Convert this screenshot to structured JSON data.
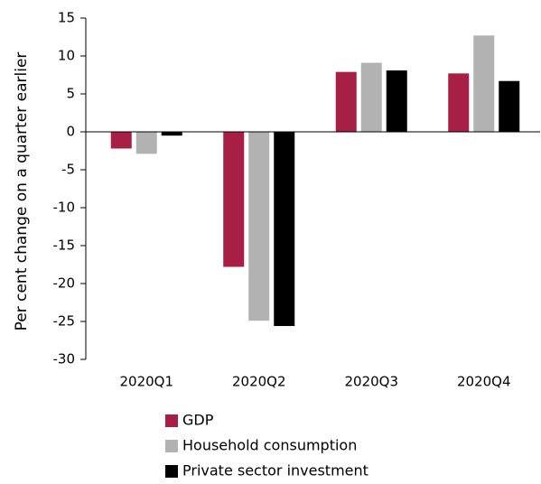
{
  "chart_data": {
    "type": "bar",
    "ylabel": "Per cent change on a quarter earlier",
    "categories": [
      "2020Q1",
      "2020Q2",
      "2020Q3",
      "2020Q4"
    ],
    "series": [
      {
        "name": "GDP",
        "color": "#a81f45",
        "values": [
          -2.2,
          -17.8,
          7.9,
          7.7
        ]
      },
      {
        "name": "Household consumption",
        "color": "#b2b2b2",
        "values": [
          -2.9,
          -24.9,
          9.1,
          12.7
        ]
      },
      {
        "name": "Private sector investment",
        "color": "#000000",
        "values": [
          -0.5,
          -25.6,
          8.1,
          6.7
        ]
      }
    ],
    "ylim": [
      -30,
      15
    ],
    "yticks": [
      -30,
      -25,
      -20,
      -15,
      -10,
      -5,
      0,
      5,
      10,
      15
    ],
    "grid": false,
    "legend": "bottom"
  }
}
